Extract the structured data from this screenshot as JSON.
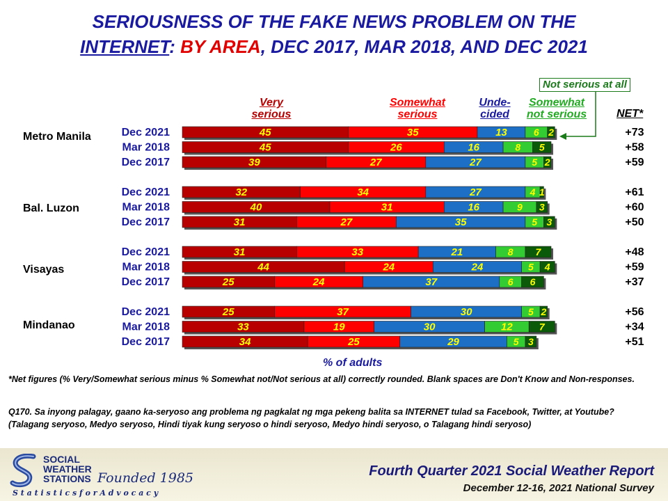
{
  "title": {
    "line1": "SERIOUSNESS  OF THE FAKE NEWS PROBLEM ON THE",
    "line2_u": "INTERNET",
    "line2_colon": ": ",
    "line2_red": "BY AREA",
    "line2_rest": ",   DEC 2017, MAR 2018, AND DEC 2021"
  },
  "headers": {
    "very_serious": [
      "Very",
      "serious"
    ],
    "somewhat_serious": [
      "Somewhat",
      "serious"
    ],
    "undecided": [
      "Unde-",
      "cided"
    ],
    "somewhat_not_serious": [
      "Somewhat",
      "not serious"
    ],
    "not_serious_at_all": "Not serious at all",
    "net": "NET*"
  },
  "x_axis_label": "% of adults",
  "colors": {
    "very_serious": "#b80000",
    "somewhat_serious": "#ff0000",
    "undecided": "#1c6fc4",
    "somewhat_not_serious": "#33cc33",
    "not_serious_at_all": "#0a5a0a",
    "value_text": "#ffff00",
    "period_text": "#1a1aa0",
    "header_very": "#b80000",
    "header_somewhat": "#ff0000",
    "header_undecided": "#1a1aa0",
    "header_somewhat_not": "#22aa22",
    "header_not_at_all": "#1a7a1a"
  },
  "chart_data": {
    "type": "bar",
    "orientation": "horizontal-stacked",
    "series_names": [
      "Very serious",
      "Somewhat serious",
      "Unde- cided",
      "Somewhat not serious",
      "Not serious at all"
    ],
    "groups": [
      {
        "area": "Metro Manila",
        "rows": [
          {
            "period": "Dec 2021",
            "values": [
              45,
              35,
              13,
              6,
              2
            ],
            "net": "+73"
          },
          {
            "period": "Mar 2018",
            "values": [
              45,
              26,
              16,
              8,
              5
            ],
            "net": "+58"
          },
          {
            "period": "Dec 2017",
            "values": [
              39,
              27,
              27,
              5,
              2
            ],
            "net": "+59"
          }
        ]
      },
      {
        "area": "Bal. Luzon",
        "rows": [
          {
            "period": "Dec 2021",
            "values": [
              32,
              34,
              27,
              4,
              1
            ],
            "net": "+61"
          },
          {
            "period": "Mar 2018",
            "values": [
              40,
              31,
              16,
              9,
              3
            ],
            "net": "+60"
          },
          {
            "period": "Dec 2017",
            "values": [
              31,
              27,
              35,
              5,
              3
            ],
            "net": "+50"
          }
        ]
      },
      {
        "area": "Visayas",
        "rows": [
          {
            "period": "Dec 2021",
            "values": [
              31,
              33,
              21,
              8,
              7
            ],
            "net": "+48"
          },
          {
            "period": "Mar 2018",
            "values": [
              44,
              24,
              24,
              5,
              4
            ],
            "net": "+59"
          },
          {
            "period": "Dec 2017",
            "values": [
              25,
              24,
              37,
              6,
              6
            ],
            "net": "+37"
          }
        ]
      },
      {
        "area": "Mindanao",
        "rows": [
          {
            "period": "Dec 2021",
            "values": [
              25,
              37,
              30,
              5,
              2
            ],
            "net": "+56"
          },
          {
            "period": "Mar 2018",
            "values": [
              33,
              19,
              30,
              12,
              7
            ],
            "net": "+34"
          },
          {
            "period": "Dec 2017",
            "values": [
              34,
              25,
              29,
              5,
              3
            ],
            "net": "+51"
          }
        ]
      }
    ]
  },
  "footnote1": "*Net figures  (% Very/Somewhat  serious minus  % Somewhat  not/Not serious  at all)  correctly  rounded.  Blank spaces  are Don't Know and  Non-responses.",
  "footnote2": "Q170.  Sa inyong palagay,  gaano ka-seryoso  ang problema  ng pagkalat ng mga pekeng  balita sa INTERNET tulad sa Facebook,  Twitter, at Youtube?  (Talagang seryoso,  Medyo seryoso,  Hindi tiyak kung seryoso o hindi seryoso, Medyo hindi seryoso,  o Talagang  hindi seryoso)",
  "logo": {
    "line1": "SOCIAL",
    "line2": "WEATHER",
    "line3": "STATIONS",
    "founded": "Founded 1985",
    "tagline": "S t a t i s t i c s   f o r   A d v o c a c y"
  },
  "report": {
    "title": "Fourth Quarter 2021 Social Weather Report",
    "subtitle": "December 12-16, 2021 National Survey"
  }
}
